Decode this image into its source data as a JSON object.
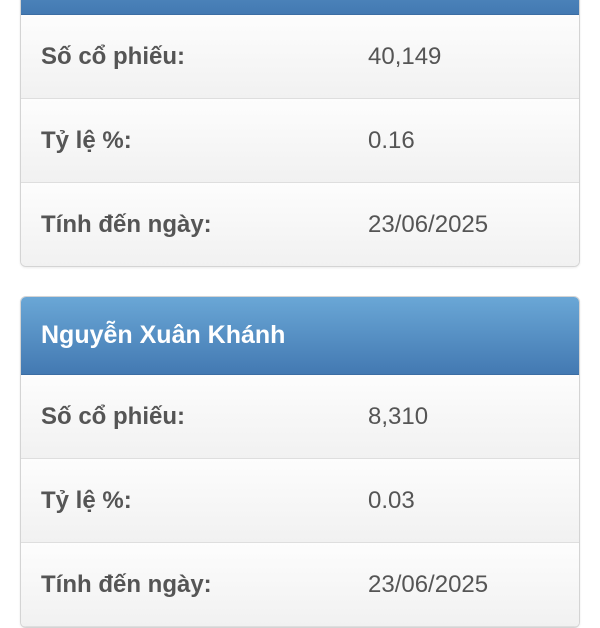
{
  "shareholders": [
    {
      "name": "",
      "rows": [
        {
          "label": "Số cổ phiếu:",
          "value": "40,149"
        },
        {
          "label": "Tỷ lệ %:",
          "value": "0.16"
        },
        {
          "label": "Tính đến ngày:",
          "value": "23/06/2025"
        }
      ]
    },
    {
      "name": "Nguyễn Xuân Khánh",
      "rows": [
        {
          "label": "Số cổ phiếu:",
          "value": "8,310"
        },
        {
          "label": "Tỷ lệ %:",
          "value": "0.03"
        },
        {
          "label": "Tính đến ngày:",
          "value": "23/06/2025"
        }
      ]
    }
  ],
  "colors": {
    "header_top": "#6aa7d6",
    "header_bottom": "#4379b2",
    "text": "#555555"
  }
}
